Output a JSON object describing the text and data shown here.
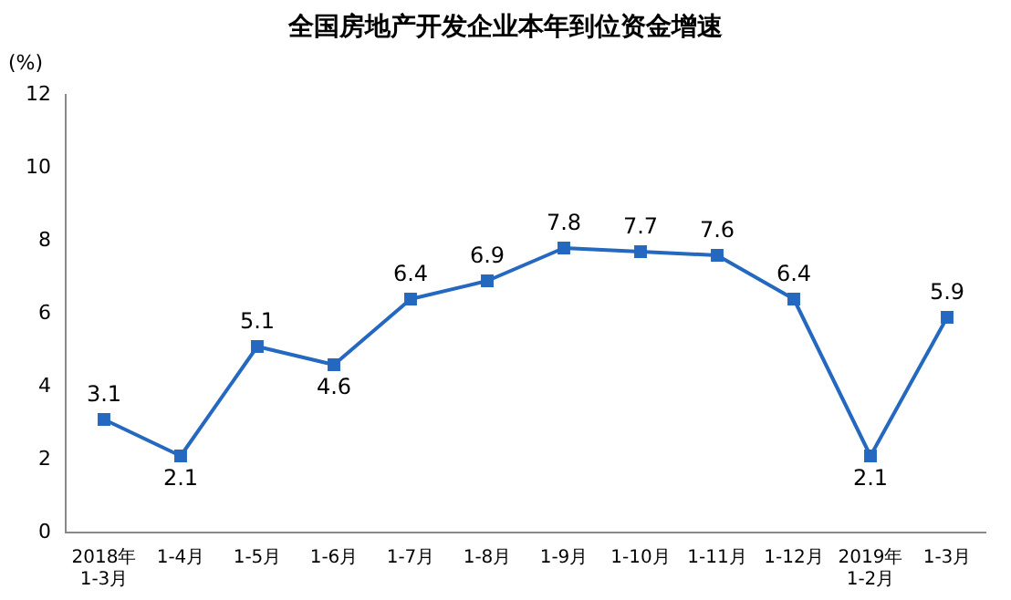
{
  "chart_data": {
    "type": "line",
    "title": "全国房地产开发企业本年到位资金增速",
    "ylabel": "(%)",
    "categories": [
      "2018年\n1-3月",
      "1-4月",
      "1-5月",
      "1-6月",
      "1-7月",
      "1-8月",
      "1-9月",
      "1-10月",
      "1-11月",
      "1-12月",
      "2019年\n1-2月",
      "1-3月"
    ],
    "series": [
      {
        "color": "#2468c0",
        "values": [
          3.1,
          2.1,
          5.1,
          4.6,
          6.4,
          6.9,
          7.8,
          7.7,
          7.6,
          6.4,
          2.1,
          5.9
        ]
      }
    ],
    "ylim": [
      0,
      12
    ],
    "yticks": [
      0,
      2,
      4,
      6,
      8,
      10,
      12
    ],
    "grid": false,
    "legend": false,
    "marker": "square",
    "line_style": "solid",
    "data_labels": true
  }
}
